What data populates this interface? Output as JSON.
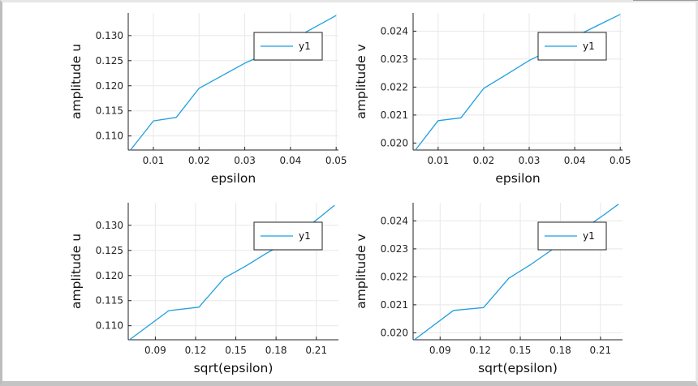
{
  "chart_data": [
    {
      "type": "line",
      "xlabel": "epsilon",
      "ylabel": "amplitude u",
      "xlim": [
        0.0045,
        0.0505
      ],
      "ylim": [
        0.1072,
        0.1345
      ],
      "xticks": [
        0.01,
        0.02,
        0.03,
        0.04,
        0.05
      ],
      "xtick_labels": [
        "0.01",
        "0.02",
        "0.03",
        "0.04",
        "0.05"
      ],
      "yticks": [
        0.11,
        0.115,
        0.12,
        0.125,
        0.13
      ],
      "ytick_labels": [
        "0.110",
        "0.115",
        "0.120",
        "0.125",
        "0.130"
      ],
      "grid": true,
      "legend": "top-right",
      "series": [
        {
          "name": "y1",
          "color": "#1f9fe0",
          "x": [
            0.005,
            0.01,
            0.015,
            0.02,
            0.025,
            0.03,
            0.035,
            0.04,
            0.045,
            0.05
          ],
          "y": [
            0.1072,
            0.113,
            0.1137,
            0.1195,
            0.122,
            0.1245,
            0.1265,
            0.129,
            0.1315,
            0.134
          ]
        }
      ]
    },
    {
      "type": "line",
      "xlabel": "epsilon",
      "ylabel": "amplitude v",
      "xlim": [
        0.0045,
        0.0505
      ],
      "ylim": [
        0.01975,
        0.02465
      ],
      "xticks": [
        0.01,
        0.02,
        0.03,
        0.04,
        0.05
      ],
      "xtick_labels": [
        "0.01",
        "0.02",
        "0.03",
        "0.04",
        "0.05"
      ],
      "yticks": [
        0.02,
        0.021,
        0.022,
        0.023,
        0.024
      ],
      "ytick_labels": [
        "0.020",
        "0.021",
        "0.022",
        "0.023",
        "0.024"
      ],
      "grid": true,
      "legend": "top-right",
      "series": [
        {
          "name": "y1",
          "color": "#1f9fe0",
          "x": [
            0.005,
            0.01,
            0.015,
            0.02,
            0.025,
            0.03,
            0.035,
            0.04,
            0.045,
            0.05
          ],
          "y": [
            0.01975,
            0.0208,
            0.0209,
            0.02195,
            0.02245,
            0.02295,
            0.02335,
            0.0238,
            0.0242,
            0.0246
          ]
        }
      ]
    },
    {
      "type": "line",
      "xlabel": "sqrt(epsilon)",
      "ylabel": "amplitude u",
      "xlim": [
        0.0698,
        0.2265
      ],
      "ylim": [
        0.1072,
        0.1345
      ],
      "xticks": [
        0.09,
        0.12,
        0.15,
        0.18,
        0.21
      ],
      "xtick_labels": [
        "0.09",
        "0.12",
        "0.15",
        "0.18",
        "0.21"
      ],
      "yticks": [
        0.11,
        0.115,
        0.12,
        0.125,
        0.13
      ],
      "ytick_labels": [
        "0.110",
        "0.115",
        "0.120",
        "0.125",
        "0.130"
      ],
      "grid": true,
      "legend": "top-right",
      "series": [
        {
          "name": "y1",
          "color": "#1f9fe0",
          "x": [
            0.0707,
            0.1,
            0.1225,
            0.1414,
            0.1581,
            0.1732,
            0.1871,
            0.2,
            0.2121,
            0.2236
          ],
          "y": [
            0.1072,
            0.113,
            0.1137,
            0.1195,
            0.122,
            0.1245,
            0.1265,
            0.129,
            0.1315,
            0.134
          ]
        }
      ]
    },
    {
      "type": "line",
      "xlabel": "sqrt(epsilon)",
      "ylabel": "amplitude v",
      "xlim": [
        0.0698,
        0.2265
      ],
      "ylim": [
        0.01975,
        0.02465
      ],
      "xticks": [
        0.09,
        0.12,
        0.15,
        0.18,
        0.21
      ],
      "xtick_labels": [
        "0.09",
        "0.12",
        "0.15",
        "0.18",
        "0.21"
      ],
      "yticks": [
        0.02,
        0.021,
        0.022,
        0.023,
        0.024
      ],
      "ytick_labels": [
        "0.020",
        "0.021",
        "0.022",
        "0.023",
        "0.024"
      ],
      "grid": true,
      "legend": "top-right",
      "series": [
        {
          "name": "y1",
          "color": "#1f9fe0",
          "x": [
            0.0707,
            0.1,
            0.1225,
            0.1414,
            0.1581,
            0.1732,
            0.1871,
            0.2,
            0.2121,
            0.2236
          ],
          "y": [
            0.01975,
            0.0208,
            0.0209,
            0.02195,
            0.02245,
            0.02295,
            0.02335,
            0.0238,
            0.0242,
            0.0246
          ]
        }
      ]
    }
  ]
}
